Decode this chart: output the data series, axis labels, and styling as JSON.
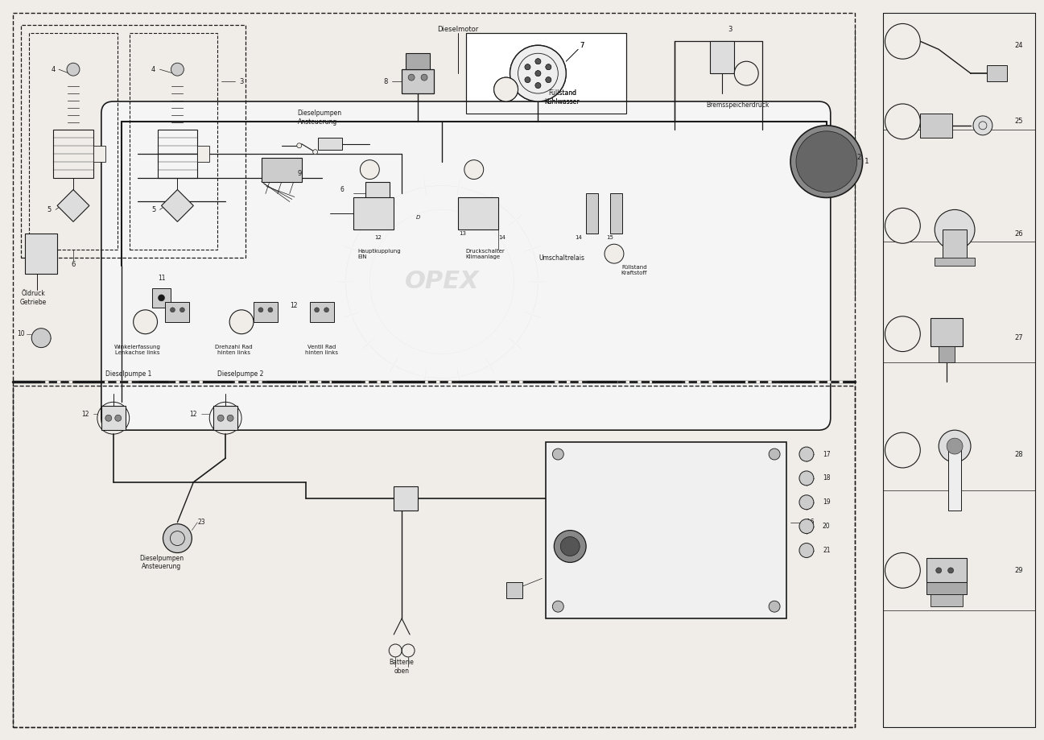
{
  "bg_color": "#f0ede8",
  "line_color": "#1a1a1a",
  "text_color": "#1a1a1a",
  "figsize": [
    12.97,
    9.19
  ],
  "dpi": 100,
  "labels": {
    "dieselmotor": "Dieselmotor",
    "fuellstand_kuhlwasser": "Füllstand\nKühlwasser",
    "bremsspeicherdruck": "Bremsspeicherdruck",
    "dieselpumpen_ansteuerung1": "Dieselpumpen\nAnsteuerung",
    "oeldruck_getriebe": "Öldruck\nGetriebe",
    "winkelerfassung": "Winkelerfassung\nLenkachse links",
    "drehzahl_rad": "Drehzahl Rad\nhinten links",
    "ventil_rad": "Ventil Rad\nhinten links",
    "hauptkupplung": "Hauptkupplung\nEIN",
    "druckschalter": "Druckschalter\nKlimaanlage",
    "umschaltrelais": "Umschaltrelais",
    "fuellstand_kraftstoff": "Füllstand\nKraftstoff",
    "dieselpumpe1": "Dieselpumpe 1",
    "dieselpumpe2": "Dieselpumpe 2",
    "dieselpumpen_ansteuerung2": "Dieselpumpen\nAnsteuerung",
    "batterie_oben": "Batterie\noben"
  }
}
